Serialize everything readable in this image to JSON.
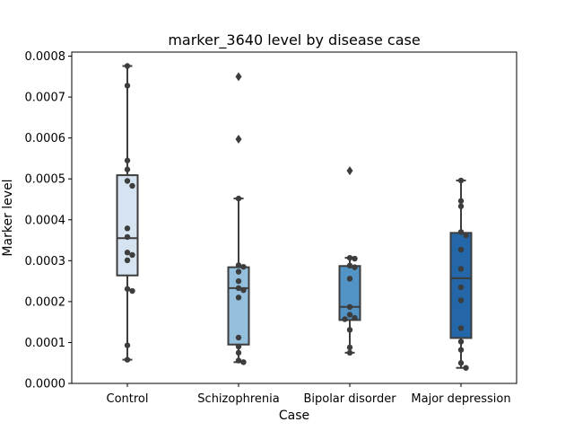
{
  "chart_data": {
    "type": "box",
    "title": "marker_3640 level by disease case",
    "xlabel": "Case",
    "ylabel": "Marker level",
    "ylim": [
      0,
      0.00081
    ],
    "yticks": [
      {
        "value": 0,
        "label": "0.0000"
      },
      {
        "value": 0.0001,
        "label": "0.0001"
      },
      {
        "value": 0.0002,
        "label": "0.0002"
      },
      {
        "value": 0.0003,
        "label": "0.0003"
      },
      {
        "value": 0.0004,
        "label": "0.0004"
      },
      {
        "value": 0.0005,
        "label": "0.0005"
      },
      {
        "value": 0.0006,
        "label": "0.0006"
      },
      {
        "value": 0.0007,
        "label": "0.0007"
      },
      {
        "value": 0.0008,
        "label": "0.0008"
      }
    ],
    "grid": false,
    "categories": [
      "Control",
      "Schizophrenia",
      "Bipolar disorder",
      "Major depression"
    ],
    "boxes": [
      {
        "category": "Control",
        "color": "#d6e4f2",
        "whisker_low": 5.8e-05,
        "q1": 0.000264,
        "median": 0.000355,
        "q3": 0.000509,
        "whisker_high": 0.000776,
        "outliers": [],
        "points": [
          0.000776,
          0.000728,
          0.000545,
          0.000523,
          0.000495,
          0.000483,
          0.000379,
          0.000358,
          0.00032,
          0.000314,
          0.000301,
          0.000231,
          0.000226,
          9.3e-05,
          5.8e-05
        ]
      },
      {
        "category": "Schizophrenia",
        "color": "#94c0de",
        "whisker_low": 5.2e-05,
        "q1": 9.5e-05,
        "median": 0.000233,
        "q3": 0.000284,
        "whisker_high": 0.000452,
        "outliers": [
          0.00075,
          0.000597
        ],
        "points": [
          0.000452,
          0.000289,
          0.000285,
          0.000273,
          0.00025,
          0.000233,
          0.000228,
          0.00021,
          0.000112,
          9e-05,
          7.5e-05,
          5.6e-05,
          5.2e-05
        ]
      },
      {
        "category": "Bipolar disorder",
        "color": "#5294c6",
        "whisker_low": 7.5e-05,
        "q1": 0.000155,
        "median": 0.000187,
        "q3": 0.000287,
        "whisker_high": 0.000307,
        "outliers": [
          0.00052
        ],
        "points": [
          0.000307,
          0.000305,
          0.000288,
          0.000284,
          0.000256,
          0.000187,
          0.000168,
          0.00016,
          0.000157,
          0.000131,
          8.8e-05,
          7.5e-05
        ]
      },
      {
        "category": "Major depression",
        "color": "#2467a9",
        "whisker_low": 3.8e-05,
        "q1": 0.000111,
        "median": 0.000257,
        "q3": 0.000368,
        "whisker_high": 0.000496,
        "outliers": [],
        "points": [
          0.000496,
          0.000446,
          0.000433,
          0.00037,
          0.000362,
          0.000327,
          0.00028,
          0.000235,
          0.000203,
          0.000135,
          0.000102,
          8.2e-05,
          5e-05,
          3.8e-05
        ]
      }
    ]
  },
  "colors": {
    "box_line": "#3d3d3d",
    "point": "#3d3d3d",
    "axes": "#000000"
  }
}
